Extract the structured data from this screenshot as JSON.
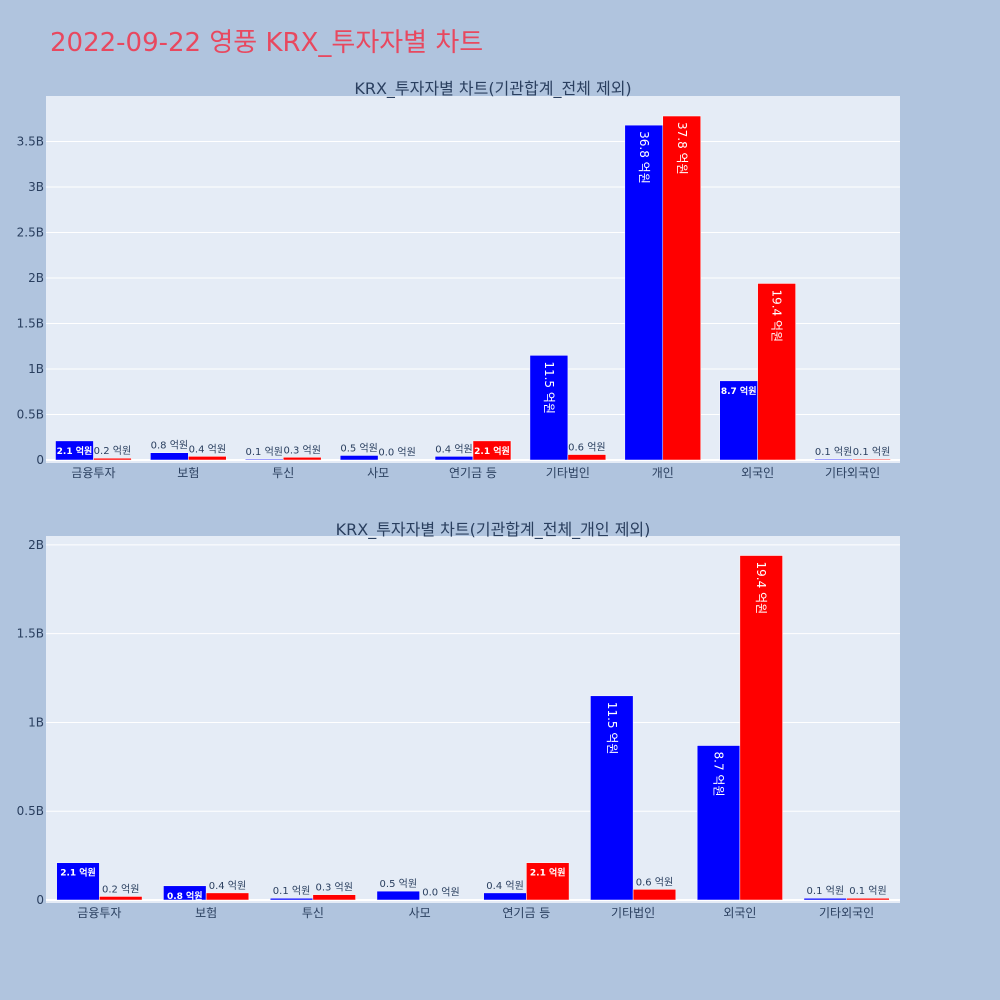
{
  "page_title": "2022-09-22 영풍 KRX_투자자별 차트",
  "colors": {
    "background": "#b0c4de",
    "plot_bg": "#e5ecf6",
    "title": "#e8485f",
    "series_a": "#0000ff",
    "series_b": "#ff0000",
    "axis_text": "#2a3f5f"
  },
  "chart_data": [
    {
      "type": "bar",
      "title": "KRX_투자자별 차트(기관합계_전체 제외)",
      "categories": [
        "금융투자",
        "보험",
        "투신",
        "사모",
        "연기금 등",
        "기타법인",
        "개인",
        "외국인",
        "기타외국인"
      ],
      "series": [
        {
          "values": [
            210000000,
            80000000,
            10000000,
            50000000,
            40000000,
            1150000000,
            3680000000,
            870000000,
            10000000
          ],
          "labels": [
            "2.1 억원",
            "0.8 억원",
            "0.1 억원",
            "0.5 억원",
            "0.4 억원",
            "11.5 억원",
            "36.8 억원",
            "8.7 억원",
            "0.1 억원"
          ]
        },
        {
          "values": [
            20000000,
            40000000,
            30000000,
            0,
            210000000,
            60000000,
            3780000000,
            1940000000,
            10000000
          ],
          "labels": [
            "0.2 억원",
            "0.4 억원",
            "0.3 억원",
            "0.0 억원",
            "2.1 억원",
            "0.6 억원",
            "37.8 억원",
            "19.4 억원",
            "0.1 억원"
          ]
        }
      ],
      "ylim": [
        0,
        4000000000
      ],
      "yticks": [
        0,
        500000000,
        1000000000,
        1500000000,
        2000000000,
        2500000000,
        3000000000,
        3500000000
      ],
      "ytick_labels": [
        "0",
        "0.5B",
        "1B",
        "1.5B",
        "2B",
        "2.5B",
        "3B",
        "3.5B"
      ],
      "grid": true
    },
    {
      "type": "bar",
      "title": "KRX_투자자별 차트(기관합계_전체_개인 제외)",
      "categories": [
        "금융투자",
        "보험",
        "투신",
        "사모",
        "연기금 등",
        "기타법인",
        "외국인",
        "기타외국인"
      ],
      "series": [
        {
          "values": [
            210000000,
            80000000,
            10000000,
            50000000,
            40000000,
            1150000000,
            870000000,
            10000000
          ],
          "labels": [
            "2.1 억원",
            "0.8 억원",
            "0.1 억원",
            "0.5 억원",
            "0.4 억원",
            "11.5 억원",
            "8.7 억원",
            "0.1 억원"
          ]
        },
        {
          "values": [
            20000000,
            40000000,
            30000000,
            0,
            210000000,
            60000000,
            1940000000,
            10000000
          ],
          "labels": [
            "0.2 억원",
            "0.4 억원",
            "0.3 억원",
            "0.0 억원",
            "2.1 억원",
            "0.6 억원",
            "19.4 억원",
            "0.1 억원"
          ]
        }
      ],
      "ylim": [
        0,
        2050000000
      ],
      "yticks": [
        0,
        500000000,
        1000000000,
        1500000000,
        2000000000
      ],
      "ytick_labels": [
        "0",
        "0.5B",
        "1B",
        "1.5B",
        "2B"
      ],
      "grid": true
    }
  ]
}
